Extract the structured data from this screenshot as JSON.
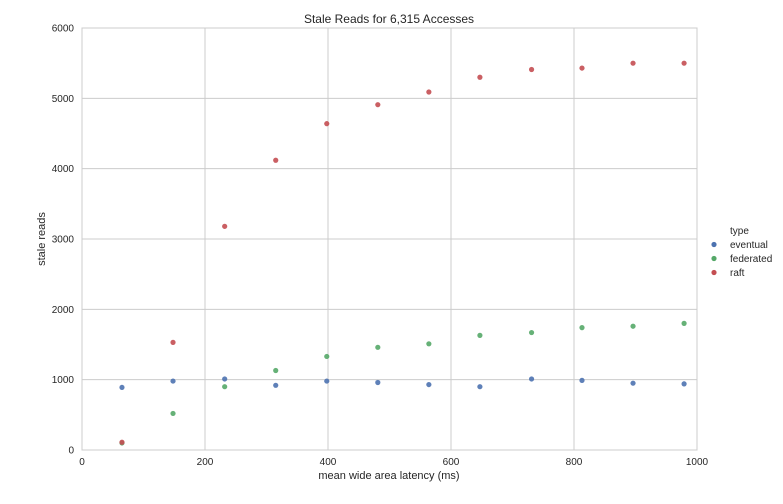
{
  "chart_data": {
    "type": "scatter",
    "title": "Stale Reads for 6,315 Accesses",
    "xlabel": "mean wide area latency (ms)",
    "ylabel": "stale reads",
    "xlim": [
      0,
      1000
    ],
    "ylim": [
      0,
      6000
    ],
    "xticks": [
      0,
      200,
      400,
      600,
      800,
      1000
    ],
    "yticks": [
      0,
      1000,
      2000,
      3000,
      4000,
      5000,
      6000
    ],
    "grid": true,
    "legend": {
      "title": "type",
      "placement": "right"
    },
    "x": [
      65,
      148,
      232,
      315,
      398,
      481,
      564,
      647,
      731,
      813,
      896,
      979
    ],
    "series": [
      {
        "name": "eventual",
        "color": "#4c72b0",
        "values": [
          890,
          980,
          1010,
          920,
          980,
          960,
          930,
          900,
          1010,
          990,
          950,
          940
        ]
      },
      {
        "name": "federated",
        "color": "#55a868",
        "values": [
          100,
          520,
          900,
          1130,
          1330,
          1460,
          1510,
          1630,
          1670,
          1740,
          1760,
          1800
        ]
      },
      {
        "name": "raft",
        "color": "#c44e52",
        "values": [
          110,
          1530,
          3180,
          4120,
          4640,
          4910,
          5090,
          5300,
          5410,
          5430,
          5500,
          5500
        ]
      }
    ]
  }
}
